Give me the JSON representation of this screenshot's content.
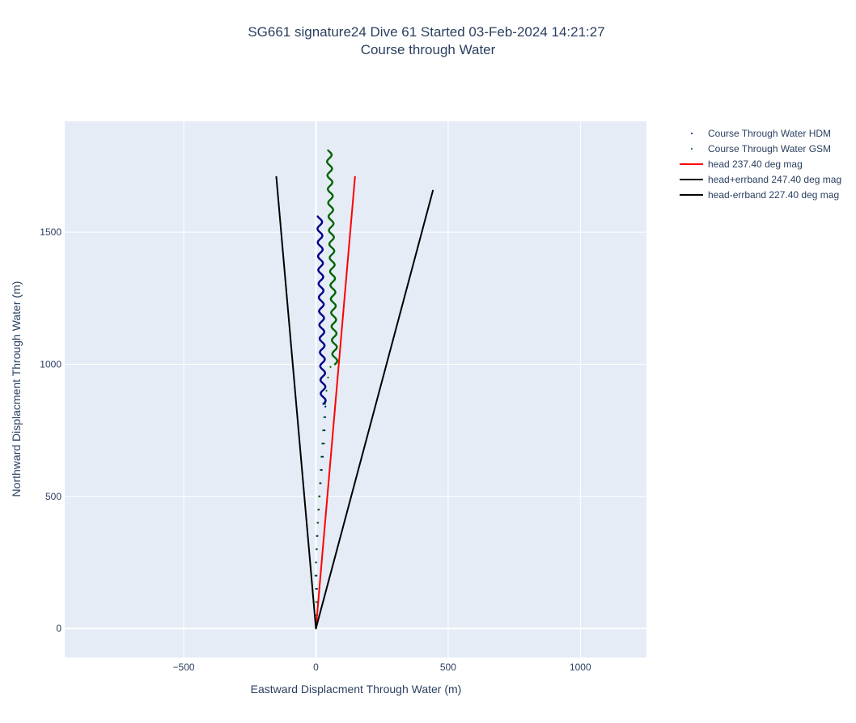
{
  "chart_data": {
    "type": "scatter",
    "title_line1": "SG661 signature24 Dive 61 Started 03-Feb-2024 14:21:27",
    "title_line2": "Course through Water",
    "xlabel": "Eastward Displacment Through Water (m)",
    "ylabel": "Northward Displacment Through Water (m)",
    "xlim": [
      -950,
      1250
    ],
    "ylim": [
      -110,
      1920
    ],
    "x_ticks": [
      -500,
      0,
      500,
      1000
    ],
    "y_ticks": [
      0,
      500,
      1000,
      1500
    ],
    "x_tick_labels": [
      "−500",
      "0",
      "500",
      "1000"
    ],
    "y_tick_labels": [
      "0",
      "500",
      "1000",
      "1500"
    ],
    "grid": true,
    "legend_position": "right",
    "colors": {
      "plot_bg": "#e5ecf6",
      "grid": "#ffffff",
      "text": "#2a3f5f"
    },
    "series": [
      {
        "name": "Course Through Water HDM",
        "mode": "markers",
        "color": "#00008b",
        "points": [
          [
            0,
            0
          ],
          [
            5,
            50
          ],
          [
            6,
            100
          ],
          [
            4,
            150
          ],
          [
            2,
            200
          ],
          [
            1,
            250
          ],
          [
            3,
            300
          ],
          [
            6,
            350
          ],
          [
            8,
            400
          ],
          [
            11,
            450
          ],
          [
            14,
            500
          ],
          [
            18,
            550
          ],
          [
            22,
            600
          ],
          [
            26,
            650
          ],
          [
            30,
            700
          ],
          [
            33,
            750
          ],
          [
            35,
            800
          ],
          [
            36,
            840
          ]
        ],
        "wiggle": {
          "start": [
            28,
            850
          ],
          "end": [
            14,
            1560
          ],
          "amplitude": 9,
          "period": 52
        }
      },
      {
        "name": "Course Through Water GSM",
        "mode": "markers",
        "color": "#006400",
        "points": [
          [
            0,
            0
          ],
          [
            2,
            50
          ],
          [
            1,
            100
          ],
          [
            0,
            150
          ],
          [
            -2,
            200
          ],
          [
            0,
            250
          ],
          [
            2,
            300
          ],
          [
            3,
            350
          ],
          [
            6,
            400
          ],
          [
            9,
            450
          ],
          [
            12,
            500
          ],
          [
            15,
            550
          ],
          [
            18,
            600
          ],
          [
            21,
            650
          ],
          [
            24,
            700
          ],
          [
            27,
            750
          ],
          [
            31,
            800
          ],
          [
            35,
            850
          ],
          [
            40,
            900
          ],
          [
            46,
            950
          ],
          [
            55,
            990
          ]
        ],
        "wiggle": {
          "start": [
            72,
            1000
          ],
          "end": [
            50,
            1810
          ],
          "amplitude": 9,
          "period": 52
        }
      },
      {
        "name": "head 237.40 deg mag",
        "mode": "lines",
        "color": "#ff0000",
        "x": [
          0,
          148
        ],
        "y": [
          0,
          1712
        ]
      },
      {
        "name": "head+errband 247.40 deg mag",
        "mode": "lines",
        "color": "#000000",
        "x": [
          0,
          -150
        ],
        "y": [
          0,
          1712
        ]
      },
      {
        "name": "head-errband 227.40 deg mag",
        "mode": "lines",
        "color": "#000000",
        "x": [
          0,
          443
        ],
        "y": [
          0,
          1660
        ]
      }
    ]
  }
}
